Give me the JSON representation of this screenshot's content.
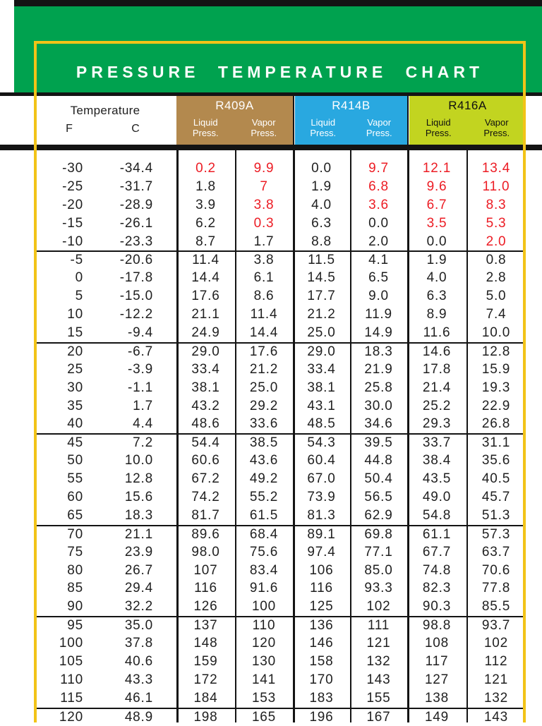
{
  "header": {
    "title": "PRESSURE TEMPERATURE CHART"
  },
  "columns": {
    "temperature_label": "Temperature",
    "f_label": "F",
    "c_label": "C",
    "liquid_label": "Liquid",
    "vapor_label": "Vapor",
    "press_label": "Press."
  },
  "refrigerants": [
    {
      "name": "R409A",
      "color": "#b3894e",
      "text_color": "#ffffff"
    },
    {
      "name": "R414B",
      "color": "#29a8e0",
      "text_color": "#ffffff"
    },
    {
      "name": "R416A",
      "color": "#c2d420",
      "text_color": "#101010"
    }
  ],
  "colors": {
    "banner_green": "#00a24f",
    "frame_yellow": "#f2c318",
    "bar_black": "#141414",
    "vacuum_red": "#ec1c24",
    "text_black": "#1f1f1f"
  },
  "chart_data": {
    "type": "table",
    "title": "PRESSURE TEMPERATURE CHART",
    "column_headers": [
      "Temperature F",
      "Temperature C",
      "R409A Liquid Press.",
      "R409A Vapor Press.",
      "R414B Liquid Press.",
      "R414B Vapor Press.",
      "R416A Liquid Press.",
      "R416A Vapor Press."
    ],
    "rows": [
      [
        "-30",
        "-34.4",
        "0.2",
        "9.9",
        "0.0",
        "9.7",
        "12.1",
        "13.4"
      ],
      [
        "-25",
        "-31.7",
        "1.8",
        "7",
        "1.9",
        "6.8",
        "9.6",
        "11.0"
      ],
      [
        "-20",
        "-28.9",
        "3.9",
        "3.8",
        "4.0",
        "3.6",
        "6.7",
        "8.3"
      ],
      [
        "-15",
        "-26.1",
        "6.2",
        "0.3",
        "6.3",
        "0.0",
        "3.5",
        "5.3"
      ],
      [
        "-10",
        "-23.3",
        "8.7",
        "1.7",
        "8.8",
        "2.0",
        "0.0",
        "2.0"
      ],
      [
        "-5",
        "-20.6",
        "11.4",
        "3.8",
        "11.5",
        "4.1",
        "1.9",
        "0.8"
      ],
      [
        "0",
        "-17.8",
        "14.4",
        "6.1",
        "14.5",
        "6.5",
        "4.0",
        "2.8"
      ],
      [
        "5",
        "-15.0",
        "17.6",
        "8.6",
        "17.7",
        "9.0",
        "6.3",
        "5.0"
      ],
      [
        "10",
        "-12.2",
        "21.1",
        "11.4",
        "21.2",
        "11.9",
        "8.9",
        "7.4"
      ],
      [
        "15",
        "-9.4",
        "24.9",
        "14.4",
        "25.0",
        "14.9",
        "11.6",
        "10.0"
      ],
      [
        "20",
        "-6.7",
        "29.0",
        "17.6",
        "29.0",
        "18.3",
        "14.6",
        "12.8"
      ],
      [
        "25",
        "-3.9",
        "33.4",
        "21.2",
        "33.4",
        "21.9",
        "17.8",
        "15.9"
      ],
      [
        "30",
        "-1.1",
        "38.1",
        "25.0",
        "38.1",
        "25.8",
        "21.4",
        "19.3"
      ],
      [
        "35",
        "1.7",
        "43.2",
        "29.2",
        "43.1",
        "30.0",
        "25.2",
        "22.9"
      ],
      [
        "40",
        "4.4",
        "48.6",
        "33.6",
        "48.5",
        "34.6",
        "29.3",
        "26.8"
      ],
      [
        "45",
        "7.2",
        "54.4",
        "38.5",
        "54.3",
        "39.5",
        "33.7",
        "31.1"
      ],
      [
        "50",
        "10.0",
        "60.6",
        "43.6",
        "60.4",
        "44.8",
        "38.4",
        "35.6"
      ],
      [
        "55",
        "12.8",
        "67.2",
        "49.2",
        "67.0",
        "50.4",
        "43.5",
        "40.5"
      ],
      [
        "60",
        "15.6",
        "74.2",
        "55.2",
        "73.9",
        "56.5",
        "49.0",
        "45.7"
      ],
      [
        "65",
        "18.3",
        "81.7",
        "61.5",
        "81.3",
        "62.9",
        "54.8",
        "51.3"
      ],
      [
        "70",
        "21.1",
        "89.6",
        "68.4",
        "89.1",
        "69.8",
        "61.1",
        "57.3"
      ],
      [
        "75",
        "23.9",
        "98.0",
        "75.6",
        "97.4",
        "77.1",
        "67.7",
        "63.7"
      ],
      [
        "80",
        "26.7",
        "107",
        "83.4",
        "106",
        "85.0",
        "74.8",
        "70.6"
      ],
      [
        "85",
        "29.4",
        "116",
        "91.6",
        "116",
        "93.3",
        "82.3",
        "77.8"
      ],
      [
        "90",
        "32.2",
        "126",
        "100",
        "125",
        "102",
        "90.3",
        "85.5"
      ],
      [
        "95",
        "35.0",
        "137",
        "110",
        "136",
        "111",
        "98.8",
        "93.7"
      ],
      [
        "100",
        "37.8",
        "148",
        "120",
        "146",
        "121",
        "108",
        "102"
      ],
      [
        "105",
        "40.6",
        "159",
        "130",
        "158",
        "132",
        "117",
        "112"
      ],
      [
        "110",
        "43.3",
        "172",
        "141",
        "170",
        "143",
        "127",
        "121"
      ],
      [
        "115",
        "46.1",
        "184",
        "153",
        "183",
        "155",
        "138",
        "132"
      ],
      [
        "120",
        "48.9",
        "198",
        "165",
        "196",
        "167",
        "149",
        "143"
      ]
    ],
    "red_cells": [
      [
        0,
        2
      ],
      [
        0,
        3
      ],
      [
        0,
        5
      ],
      [
        0,
        6
      ],
      [
        0,
        7
      ],
      [
        1,
        3
      ],
      [
        1,
        5
      ],
      [
        1,
        6
      ],
      [
        1,
        7
      ],
      [
        2,
        3
      ],
      [
        2,
        5
      ],
      [
        2,
        6
      ],
      [
        2,
        7
      ],
      [
        3,
        3
      ],
      [
        3,
        6
      ],
      [
        3,
        7
      ],
      [
        4,
        7
      ]
    ],
    "group_breaks": [
      5,
      10,
      15,
      20,
      25,
      30
    ]
  }
}
